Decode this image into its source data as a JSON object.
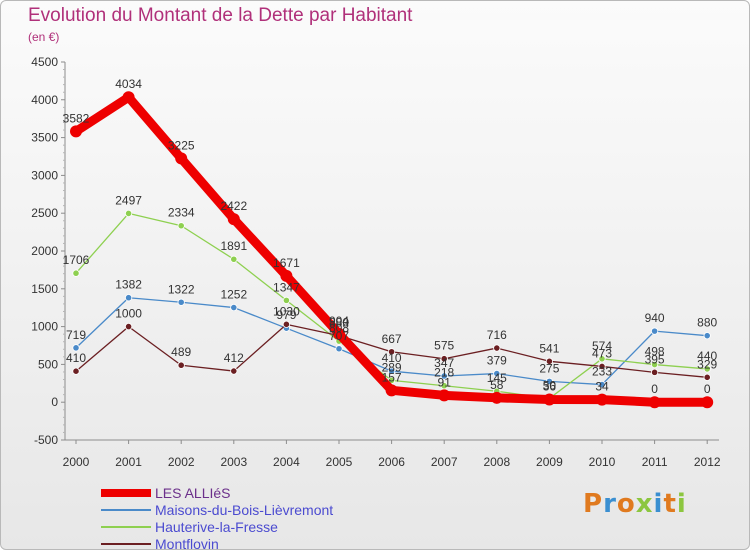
{
  "header": {
    "title": "Evolution du Montant de la Dette par Habitant",
    "unit": "(en €)"
  },
  "logo": {
    "text": "Proxiti"
  },
  "chart_data": {
    "type": "line",
    "title": "Evolution du Montant de la Dette par Habitant",
    "ylabel": "(en €)",
    "xlabel": "",
    "ylim": [
      -500,
      4500
    ],
    "yticks": [
      -500,
      0,
      500,
      1000,
      1500,
      2000,
      2500,
      3000,
      3500,
      4000,
      4500
    ],
    "grid": false,
    "legend_position": "bottom-left",
    "x": [
      "2000",
      "2001",
      "2002",
      "2003",
      "2004",
      "2005",
      "2006",
      "2007",
      "2008",
      "2009",
      "2010",
      "2011",
      "2012"
    ],
    "series": [
      {
        "name": "LES ALLIéS",
        "color": "#ee0000",
        "values": [
          3582,
          4034,
          3225,
          2422,
          1671,
          904,
          157,
          91,
          58,
          36,
          34,
          0,
          0
        ],
        "labels": [
          "3582",
          "4034",
          "3225",
          "2422",
          "1671",
          "904",
          "157",
          "91",
          "58",
          "36",
          "34",
          "0",
          "0"
        ]
      },
      {
        "name": "Maisons-du-Bois-Lièvremont",
        "color": "#4a8ac9",
        "values": [
          719,
          1382,
          1322,
          1252,
          979,
          707,
          410,
          347,
          379,
          275,
          233,
          940,
          880
        ],
        "labels": [
          "719",
          "1382",
          "1322",
          "1252",
          "979",
          "707",
          "410",
          "347",
          "379",
          "275",
          "233",
          "940",
          "880"
        ]
      },
      {
        "name": "Hauterive-la-Fresse",
        "color": "#8ed050",
        "values": [
          1706,
          2497,
          2334,
          1891,
          1347,
          808,
          289,
          218,
          145,
          50,
          574,
          498,
          440
        ],
        "labels": [
          "1706",
          "2497",
          "2334",
          "1891",
          "1347",
          "808",
          "289",
          "218",
          "145",
          "50",
          "574",
          "498",
          "440"
        ]
      },
      {
        "name": "Montflovin",
        "color": "#6b1f22",
        "values": [
          410,
          1000,
          489,
          412,
          1030,
          880,
          667,
          575,
          716,
          541,
          473,
          395,
          329
        ],
        "labels": [
          "410",
          "1000",
          "489",
          "412",
          "1030",
          "880",
          "667",
          "575",
          "716",
          "541",
          "473",
          "395",
          "329"
        ]
      }
    ]
  }
}
